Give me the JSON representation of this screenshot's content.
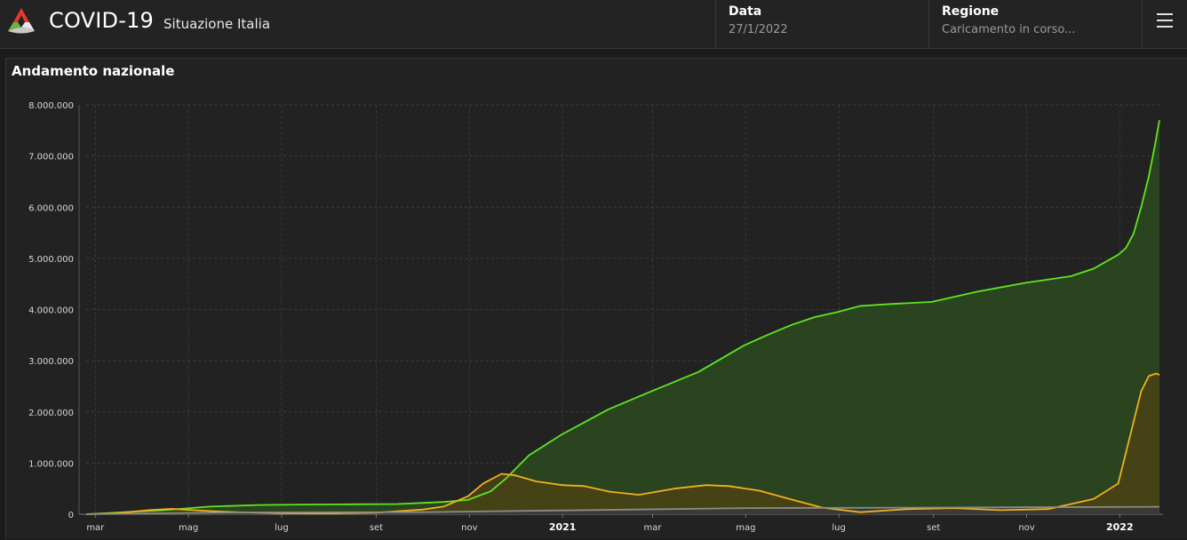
{
  "header": {
    "title": "COVID-19",
    "subtitle": "Situazione Italia",
    "data_label": "Data",
    "data_value": "27/1/2022",
    "regione_label": "Regione",
    "regione_value": "Caricamento in corso...",
    "logo_icon": "italy-covid-logo-icon",
    "menu_icon": "hamburger-menu-icon"
  },
  "panel": {
    "title": "Andamento nazionale"
  },
  "chart_data": {
    "type": "area",
    "title": "Andamento nazionale",
    "ylim": [
      0,
      8000000
    ],
    "y_ticks": [
      0,
      1000000,
      2000000,
      3000000,
      4000000,
      5000000,
      6000000,
      7000000,
      8000000
    ],
    "y_tick_labels": [
      "0",
      "1.000.000",
      "2.000.000",
      "3.000.000",
      "4.000.000",
      "5.000.000",
      "6.000.000",
      "7.000.000",
      "8.000.000"
    ],
    "x_range": [
      "2020-02-24",
      "2022-01-27"
    ],
    "x_ticks": [
      {
        "date": "2020-03-01",
        "label": "mar",
        "major": false
      },
      {
        "date": "2020-05-01",
        "label": "mag",
        "major": false
      },
      {
        "date": "2020-07-01",
        "label": "lug",
        "major": false
      },
      {
        "date": "2020-09-01",
        "label": "set",
        "major": false
      },
      {
        "date": "2020-11-01",
        "label": "nov",
        "major": false
      },
      {
        "date": "2021-01-01",
        "label": "2021",
        "major": true
      },
      {
        "date": "2021-03-01",
        "label": "mar",
        "major": false
      },
      {
        "date": "2021-05-01",
        "label": "mag",
        "major": false
      },
      {
        "date": "2021-07-01",
        "label": "lug",
        "major": false
      },
      {
        "date": "2021-09-01",
        "label": "set",
        "major": false
      },
      {
        "date": "2021-11-01",
        "label": "nov",
        "major": false
      },
      {
        "date": "2022-01-01",
        "label": "2022",
        "major": true
      }
    ],
    "grid": true,
    "legend": "none",
    "series": [
      {
        "color": "#5ee620",
        "fill": "#2a4a1f",
        "x": [
          "2020-02-24",
          "2020-03-20",
          "2020-04-15",
          "2020-05-15",
          "2020-06-15",
          "2020-07-15",
          "2020-08-15",
          "2020-09-15",
          "2020-10-15",
          "2020-10-31",
          "2020-11-15",
          "2020-11-25",
          "2020-12-10",
          "2020-12-31",
          "2021-01-31",
          "2021-02-28",
          "2021-03-31",
          "2021-04-30",
          "2021-05-15",
          "2021-05-31",
          "2021-06-15",
          "2021-06-30",
          "2021-07-15",
          "2021-07-31",
          "2021-08-31",
          "2021-09-30",
          "2021-10-31",
          "2021-11-30",
          "2021-12-15",
          "2021-12-31",
          "2022-01-05",
          "2022-01-10",
          "2022-01-15",
          "2022-01-20",
          "2022-01-24",
          "2022-01-27"
        ],
        "values": [
          0,
          40000,
          80000,
          150000,
          180000,
          190000,
          195000,
          200000,
          240000,
          280000,
          450000,
          700000,
          1150000,
          1550000,
          2050000,
          2400000,
          2780000,
          3300000,
          3500000,
          3700000,
          3850000,
          3950000,
          4070000,
          4100000,
          4150000,
          4350000,
          4520000,
          4650000,
          4800000,
          5070000,
          5200000,
          5480000,
          6000000,
          6600000,
          7200000,
          7700000
        ]
      },
      {
        "color": "#f2b01e",
        "fill": "#4a4215",
        "x": [
          "2020-02-24",
          "2020-03-15",
          "2020-04-05",
          "2020-04-20",
          "2020-05-10",
          "2020-06-01",
          "2020-07-01",
          "2020-08-01",
          "2020-09-01",
          "2020-10-01",
          "2020-10-15",
          "2020-10-31",
          "2020-11-10",
          "2020-11-22",
          "2020-12-01",
          "2020-12-15",
          "2021-01-01",
          "2021-01-15",
          "2021-02-01",
          "2021-02-20",
          "2021-03-15",
          "2021-04-05",
          "2021-04-20",
          "2021-05-10",
          "2021-06-01",
          "2021-06-20",
          "2021-07-15",
          "2021-08-15",
          "2021-09-15",
          "2021-10-15",
          "2021-11-15",
          "2021-12-15",
          "2021-12-31",
          "2022-01-05",
          "2022-01-10",
          "2022-01-15",
          "2022-01-20",
          "2022-01-25",
          "2022-01-27"
        ],
        "values": [
          0,
          20000,
          80000,
          105000,
          70000,
          40000,
          18000,
          15000,
          30000,
          90000,
          150000,
          350000,
          600000,
          790000,
          760000,
          640000,
          570000,
          550000,
          440000,
          380000,
          500000,
          570000,
          550000,
          460000,
          280000,
          130000,
          40000,
          100000,
          120000,
          80000,
          100000,
          300000,
          600000,
          1200000,
          1800000,
          2400000,
          2700000,
          2750000,
          2720000
        ]
      },
      {
        "color": "#8a8a8a",
        "fill": "#3a3a3a",
        "x": [
          "2020-02-24",
          "2020-06-01",
          "2020-10-01",
          "2021-01-01",
          "2021-05-01",
          "2021-09-01",
          "2022-01-27"
        ],
        "values": [
          0,
          35000,
          40000,
          75000,
          120000,
          130000,
          145000
        ]
      }
    ]
  }
}
